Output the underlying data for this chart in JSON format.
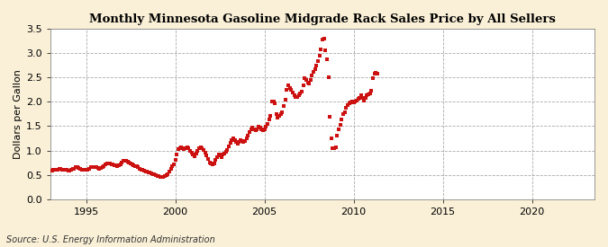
{
  "title": "Monthly Minnesota Gasoline Midgrade Rack Sales Price by All Sellers",
  "ylabel": "Dollars per Gallon",
  "source": "Source: U.S. Energy Information Administration",
  "outer_bg": "#FAF0D7",
  "plot_bg": "#FFFFFF",
  "dot_color": "#CC1111",
  "ylim": [
    0.0,
    3.5
  ],
  "xlim": [
    1993.0,
    2023.5
  ],
  "yticks": [
    0.0,
    0.5,
    1.0,
    1.5,
    2.0,
    2.5,
    3.0,
    3.5
  ],
  "xticks": [
    1995,
    2000,
    2005,
    2010,
    2015,
    2020
  ],
  "data": [
    [
      1993.08,
      0.59
    ],
    [
      1993.17,
      0.6
    ],
    [
      1993.25,
      0.61
    ],
    [
      1993.33,
      0.6
    ],
    [
      1993.42,
      0.61
    ],
    [
      1993.5,
      0.62
    ],
    [
      1993.58,
      0.62
    ],
    [
      1993.67,
      0.61
    ],
    [
      1993.75,
      0.6
    ],
    [
      1993.83,
      0.6
    ],
    [
      1993.92,
      0.6
    ],
    [
      1994.0,
      0.59
    ],
    [
      1994.08,
      0.59
    ],
    [
      1994.17,
      0.61
    ],
    [
      1994.25,
      0.62
    ],
    [
      1994.33,
      0.63
    ],
    [
      1994.42,
      0.65
    ],
    [
      1994.5,
      0.65
    ],
    [
      1994.58,
      0.64
    ],
    [
      1994.67,
      0.63
    ],
    [
      1994.75,
      0.61
    ],
    [
      1994.83,
      0.6
    ],
    [
      1994.92,
      0.6
    ],
    [
      1995.0,
      0.6
    ],
    [
      1995.08,
      0.61
    ],
    [
      1995.17,
      0.63
    ],
    [
      1995.25,
      0.65
    ],
    [
      1995.33,
      0.66
    ],
    [
      1995.42,
      0.66
    ],
    [
      1995.5,
      0.66
    ],
    [
      1995.58,
      0.65
    ],
    [
      1995.67,
      0.64
    ],
    [
      1995.75,
      0.63
    ],
    [
      1995.83,
      0.64
    ],
    [
      1995.92,
      0.66
    ],
    [
      1996.0,
      0.68
    ],
    [
      1996.08,
      0.72
    ],
    [
      1996.17,
      0.74
    ],
    [
      1996.25,
      0.74
    ],
    [
      1996.33,
      0.73
    ],
    [
      1996.42,
      0.72
    ],
    [
      1996.5,
      0.71
    ],
    [
      1996.58,
      0.7
    ],
    [
      1996.67,
      0.69
    ],
    [
      1996.75,
      0.68
    ],
    [
      1996.83,
      0.69
    ],
    [
      1996.92,
      0.72
    ],
    [
      1997.0,
      0.76
    ],
    [
      1997.08,
      0.78
    ],
    [
      1997.17,
      0.79
    ],
    [
      1997.25,
      0.78
    ],
    [
      1997.33,
      0.77
    ],
    [
      1997.42,
      0.76
    ],
    [
      1997.5,
      0.74
    ],
    [
      1997.58,
      0.72
    ],
    [
      1997.67,
      0.7
    ],
    [
      1997.75,
      0.68
    ],
    [
      1997.83,
      0.67
    ],
    [
      1997.92,
      0.65
    ],
    [
      1998.0,
      0.63
    ],
    [
      1998.08,
      0.61
    ],
    [
      1998.17,
      0.6
    ],
    [
      1998.25,
      0.59
    ],
    [
      1998.33,
      0.57
    ],
    [
      1998.42,
      0.56
    ],
    [
      1998.5,
      0.55
    ],
    [
      1998.58,
      0.54
    ],
    [
      1998.67,
      0.53
    ],
    [
      1998.75,
      0.52
    ],
    [
      1998.83,
      0.51
    ],
    [
      1998.92,
      0.5
    ],
    [
      1999.0,
      0.48
    ],
    [
      1999.08,
      0.47
    ],
    [
      1999.17,
      0.46
    ],
    [
      1999.25,
      0.45
    ],
    [
      1999.33,
      0.46
    ],
    [
      1999.42,
      0.47
    ],
    [
      1999.5,
      0.49
    ],
    [
      1999.58,
      0.52
    ],
    [
      1999.67,
      0.57
    ],
    [
      1999.75,
      0.62
    ],
    [
      1999.83,
      0.67
    ],
    [
      1999.92,
      0.72
    ],
    [
      2000.0,
      0.8
    ],
    [
      2000.08,
      0.92
    ],
    [
      2000.17,
      1.02
    ],
    [
      2000.25,
      1.05
    ],
    [
      2000.33,
      1.06
    ],
    [
      2000.42,
      1.04
    ],
    [
      2000.5,
      1.02
    ],
    [
      2000.58,
      1.04
    ],
    [
      2000.67,
      1.07
    ],
    [
      2000.75,
      1.04
    ],
    [
      2000.83,
      1.0
    ],
    [
      2000.92,
      0.95
    ],
    [
      2001.0,
      0.91
    ],
    [
      2001.08,
      0.88
    ],
    [
      2001.17,
      0.93
    ],
    [
      2001.25,
      1.0
    ],
    [
      2001.33,
      1.05
    ],
    [
      2001.42,
      1.07
    ],
    [
      2001.5,
      1.04
    ],
    [
      2001.58,
      1.01
    ],
    [
      2001.67,
      0.96
    ],
    [
      2001.75,
      0.9
    ],
    [
      2001.83,
      0.83
    ],
    [
      2001.92,
      0.76
    ],
    [
      2002.0,
      0.73
    ],
    [
      2002.08,
      0.71
    ],
    [
      2002.17,
      0.74
    ],
    [
      2002.25,
      0.8
    ],
    [
      2002.33,
      0.87
    ],
    [
      2002.42,
      0.91
    ],
    [
      2002.5,
      0.89
    ],
    [
      2002.58,
      0.87
    ],
    [
      2002.67,
      0.91
    ],
    [
      2002.75,
      0.94
    ],
    [
      2002.83,
      0.97
    ],
    [
      2002.92,
      1.01
    ],
    [
      2003.0,
      1.08
    ],
    [
      2003.08,
      1.15
    ],
    [
      2003.17,
      1.22
    ],
    [
      2003.25,
      1.24
    ],
    [
      2003.33,
      1.21
    ],
    [
      2003.42,
      1.17
    ],
    [
      2003.5,
      1.14
    ],
    [
      2003.58,
      1.17
    ],
    [
      2003.67,
      1.21
    ],
    [
      2003.75,
      1.19
    ],
    [
      2003.83,
      1.17
    ],
    [
      2003.92,
      1.19
    ],
    [
      2004.0,
      1.24
    ],
    [
      2004.08,
      1.3
    ],
    [
      2004.17,
      1.37
    ],
    [
      2004.25,
      1.44
    ],
    [
      2004.33,
      1.47
    ],
    [
      2004.42,
      1.44
    ],
    [
      2004.5,
      1.41
    ],
    [
      2004.58,
      1.44
    ],
    [
      2004.67,
      1.49
    ],
    [
      2004.75,
      1.47
    ],
    [
      2004.83,
      1.44
    ],
    [
      2004.92,
      1.41
    ],
    [
      2005.0,
      1.44
    ],
    [
      2005.08,
      1.49
    ],
    [
      2005.17,
      1.54
    ],
    [
      2005.25,
      1.64
    ],
    [
      2005.33,
      1.71
    ],
    [
      2005.42,
      2.0
    ],
    [
      2005.5,
      2.0
    ],
    [
      2005.58,
      1.97
    ],
    [
      2005.67,
      1.74
    ],
    [
      2005.75,
      1.67
    ],
    [
      2005.83,
      1.71
    ],
    [
      2005.92,
      1.74
    ],
    [
      2006.0,
      1.79
    ],
    [
      2006.08,
      1.91
    ],
    [
      2006.17,
      2.04
    ],
    [
      2006.25,
      2.24
    ],
    [
      2006.33,
      2.34
    ],
    [
      2006.42,
      2.29
    ],
    [
      2006.5,
      2.24
    ],
    [
      2006.58,
      2.19
    ],
    [
      2006.67,
      2.14
    ],
    [
      2006.75,
      2.09
    ],
    [
      2006.83,
      2.09
    ],
    [
      2006.92,
      2.14
    ],
    [
      2007.0,
      2.17
    ],
    [
      2007.08,
      2.21
    ],
    [
      2007.17,
      2.34
    ],
    [
      2007.25,
      2.49
    ],
    [
      2007.33,
      2.44
    ],
    [
      2007.42,
      2.39
    ],
    [
      2007.5,
      2.37
    ],
    [
      2007.58,
      2.44
    ],
    [
      2007.67,
      2.54
    ],
    [
      2007.75,
      2.61
    ],
    [
      2007.83,
      2.67
    ],
    [
      2007.92,
      2.74
    ],
    [
      2008.0,
      2.84
    ],
    [
      2008.08,
      2.94
    ],
    [
      2008.17,
      3.07
    ],
    [
      2008.25,
      3.27
    ],
    [
      2008.33,
      3.3
    ],
    [
      2008.42,
      3.05
    ],
    [
      2008.5,
      2.88
    ],
    [
      2008.58,
      2.5
    ],
    [
      2008.67,
      1.7
    ],
    [
      2008.75,
      1.25
    ],
    [
      2008.83,
      1.05
    ],
    [
      2008.92,
      1.05
    ],
    [
      2009.0,
      1.07
    ],
    [
      2009.08,
      1.3
    ],
    [
      2009.17,
      1.43
    ],
    [
      2009.25,
      1.53
    ],
    [
      2009.33,
      1.63
    ],
    [
      2009.42,
      1.74
    ],
    [
      2009.5,
      1.78
    ],
    [
      2009.58,
      1.87
    ],
    [
      2009.67,
      1.93
    ],
    [
      2009.75,
      1.96
    ],
    [
      2009.83,
      1.98
    ],
    [
      2009.92,
      2.0
    ],
    [
      2010.0,
      1.98
    ],
    [
      2010.08,
      2.0
    ],
    [
      2010.17,
      2.03
    ],
    [
      2010.25,
      2.06
    ],
    [
      2010.33,
      2.08
    ],
    [
      2010.42,
      2.13
    ],
    [
      2010.5,
      2.08
    ],
    [
      2010.58,
      2.03
    ],
    [
      2010.67,
      2.08
    ],
    [
      2010.75,
      2.13
    ],
    [
      2010.83,
      2.16
    ],
    [
      2010.92,
      2.18
    ],
    [
      2011.0,
      2.22
    ],
    [
      2011.08,
      2.48
    ],
    [
      2011.17,
      2.58
    ],
    [
      2011.25,
      2.6
    ],
    [
      2011.33,
      2.58
    ]
  ]
}
